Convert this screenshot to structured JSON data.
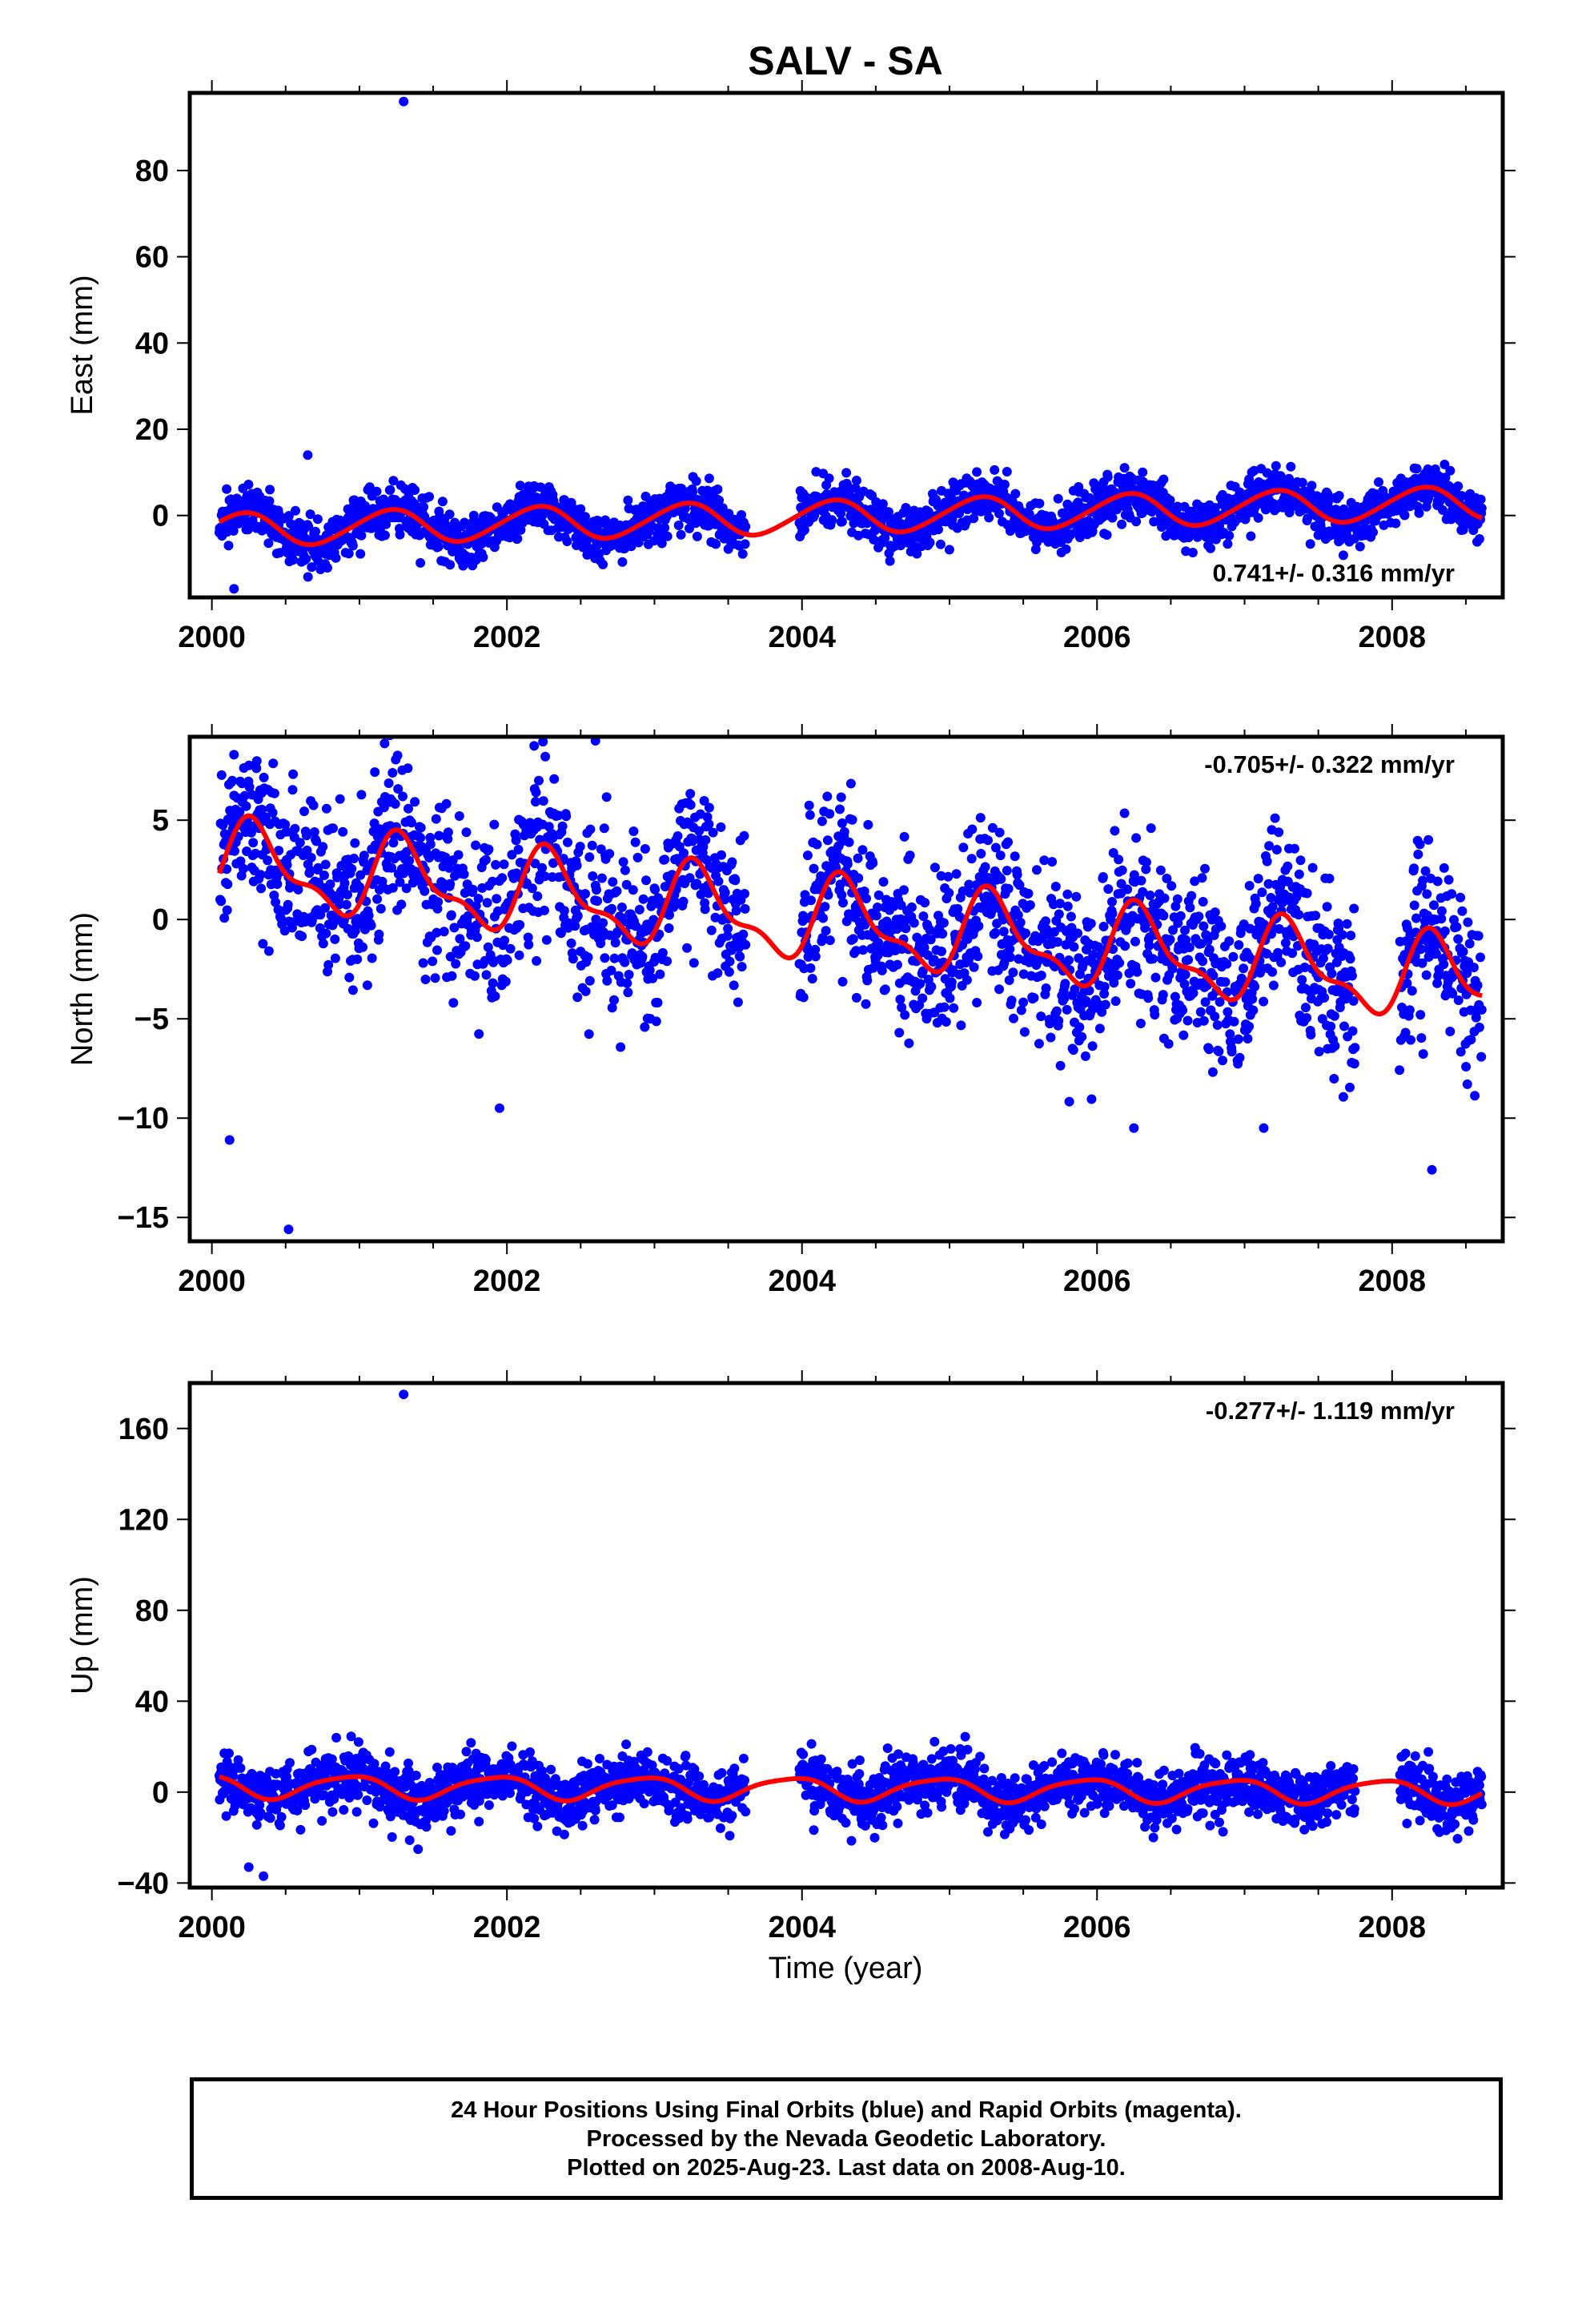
{
  "title": "SALV - SA",
  "xlabel": "Time (year)",
  "footer": {
    "line1": "24 Hour Positions Using Final Orbits (blue) and Rapid Orbits (magenta).",
    "line2": "Processed by the Nevada Geodetic Laboratory.",
    "line3": "Plotted on 2025-Aug-23. Last data on 2008-Aug-10."
  },
  "colors": {
    "points": "#0000ff",
    "fit": "#ff0000",
    "frame": "#000000"
  },
  "chart_data": [
    {
      "type": "scatter",
      "name": "east",
      "ylabel": "East (mm)",
      "rate_label": "0.741+/- 0.316 mm/yr",
      "rate_position": "bottom-right",
      "xlim": [
        1999.85,
        2008.75
      ],
      "ylim": [
        -19,
        98
      ],
      "xticks": [
        2000,
        2002,
        2004,
        2006,
        2008
      ],
      "yticks": [
        0,
        20,
        40,
        60,
        80
      ],
      "model": {
        "mean": -0.2,
        "rate": 0.741,
        "t0": 2004.3,
        "amp1": 3.8,
        "phase1": -0.05,
        "amp2": 0.4,
        "phase2": 0.2,
        "t_start": 2000.05,
        "t_end": 2008.61
      },
      "scatter": {
        "sd": 2.8,
        "seed": 11
      },
      "gaps": [
        [
          2003.62,
          2003.98
        ]
      ],
      "outliers": [
        {
          "x": 2001.3,
          "y": 96
        },
        {
          "x": 2000.15,
          "y": -17
        },
        {
          "x": 2000.65,
          "y": 14
        }
      ]
    },
    {
      "type": "scatter",
      "name": "north",
      "ylabel": "North (mm)",
      "rate_label": "-0.705+/- 0.322 mm/yr",
      "rate_position": "top-right",
      "xlim": [
        1999.85,
        2008.75
      ],
      "ylim": [
        -16.2,
        9.2
      ],
      "xticks": [
        2000,
        2002,
        2004,
        2006,
        2008
      ],
      "yticks": [
        -15,
        -10,
        -5,
        0,
        5
      ],
      "model": {
        "mean": -0.2,
        "rate": -0.705,
        "t0": 2004.3,
        "amp1": 1.9,
        "phase1": 0.05,
        "amp2": 0.8,
        "phase2": 0.1,
        "t_start": 2000.05,
        "t_end": 2008.61
      },
      "scatter": {
        "sd": 2.1,
        "seed": 23
      },
      "gaps": [
        [
          2003.62,
          2003.98
        ],
        [
          2007.75,
          2008.05
        ]
      ],
      "outliers": [
        {
          "x": 2000.52,
          "y": -15.6
        },
        {
          "x": 2006.25,
          "y": -10.5
        },
        {
          "x": 2007.13,
          "y": -10.5
        },
        {
          "x": 2008.27,
          "y": -12.6
        },
        {
          "x": 2000.12,
          "y": -11.1
        },
        {
          "x": 2001.95,
          "y": -9.5
        },
        {
          "x": 2000.15,
          "y": 8.3
        },
        {
          "x": 2002.6,
          "y": 9
        }
      ]
    },
    {
      "type": "scatter",
      "name": "up",
      "ylabel": "Up (mm)",
      "rate_label": "-0.277+/- 1.119 mm/yr",
      "rate_position": "top-right",
      "xlim": [
        1999.85,
        2008.75
      ],
      "ylim": [
        -42,
        180
      ],
      "xticks": [
        2000,
        2002,
        2004,
        2006,
        2008
      ],
      "yticks": [
        -40,
        0,
        40,
        80,
        120,
        160
      ],
      "model": {
        "mean": 1.5,
        "rate": -0.277,
        "t0": 2004.3,
        "amp1": 5.0,
        "phase1": 0.67,
        "amp2": 1.0,
        "phase2": 0.5,
        "t_start": 2000.05,
        "t_end": 2008.61
      },
      "scatter": {
        "sd": 6.5,
        "seed": 37
      },
      "gaps": [
        [
          2003.62,
          2003.98
        ],
        [
          2007.75,
          2008.05
        ]
      ],
      "outliers": [
        {
          "x": 2001.3,
          "y": 175
        },
        {
          "x": 2000.35,
          "y": -37
        },
        {
          "x": 2000.25,
          "y": -33
        }
      ]
    }
  ]
}
